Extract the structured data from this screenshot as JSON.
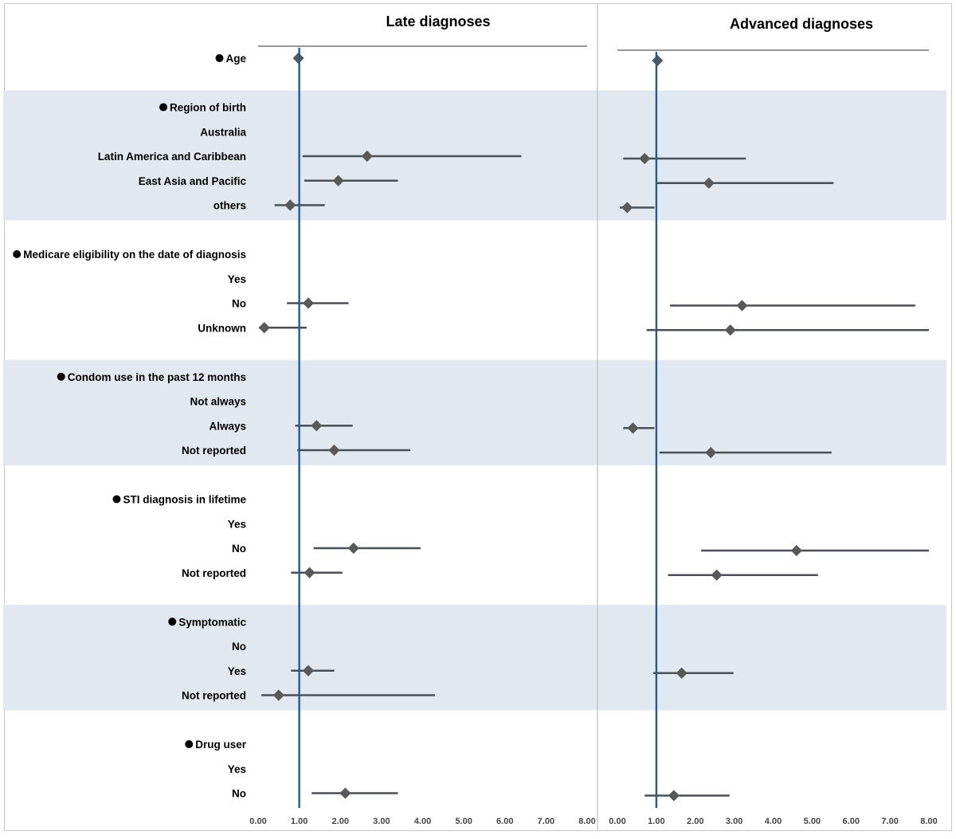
{
  "chart_data": {
    "type": "forest",
    "panels": [
      {
        "id": "late",
        "title": "Late diagnoses",
        "xlim": [
          0,
          8
        ],
        "ticks": [
          "0.00",
          "1.00",
          "2.00",
          "3.00",
          "4.00",
          "5.00",
          "6.00",
          "7.00",
          "8.00"
        ]
      },
      {
        "id": "advanced",
        "title": "Advanced diagnoses",
        "xlim": [
          0,
          8
        ],
        "ticks": [
          "0.00",
          "1.00",
          "2.00",
          "3.00",
          "4.00",
          "5.00",
          "6.00",
          "7.00",
          "8.00"
        ]
      }
    ],
    "reference_value": 1.0,
    "groups": [
      {
        "shaded": false,
        "rows": [
          {
            "label": "Age",
            "header": true,
            "late": {
              "est": 0.98,
              "lo": null,
              "hi": null
            },
            "advanced": {
              "est": 1.03,
              "lo": null,
              "hi": null
            }
          }
        ]
      },
      {
        "shaded": true,
        "rows": [
          {
            "label": "Region of birth",
            "header": true
          },
          {
            "label": "Australia"
          },
          {
            "label": "Latin America and Caribbean",
            "late": {
              "est": 2.65,
              "lo": 1.08,
              "hi": 6.4
            },
            "advanced": {
              "est": 0.7,
              "lo": 0.15,
              "hi": 3.3
            }
          },
          {
            "label": "East Asia and Pacific",
            "late": {
              "est": 1.95,
              "lo": 1.12,
              "hi": 3.4
            },
            "advanced": {
              "est": 2.35,
              "lo": 1.0,
              "hi": 5.55
            }
          },
          {
            "label": "others",
            "late": {
              "est": 0.78,
              "lo": 0.4,
              "hi": 1.62
            },
            "advanced": {
              "est": 0.25,
              "lo": 0.06,
              "hi": 0.95
            }
          }
        ]
      },
      {
        "shaded": false,
        "rows": [
          {
            "label": "Medicare eligibility on the date of diagnosis",
            "header": true
          },
          {
            "label": "Yes"
          },
          {
            "label": "No",
            "late": {
              "est": 1.22,
              "lo": 0.7,
              "hi": 2.2
            },
            "advanced": {
              "est": 3.2,
              "lo": 1.35,
              "hi": 7.65
            }
          },
          {
            "label": "Unknown",
            "late": {
              "est": 0.15,
              "lo": 0.02,
              "hi": 1.18
            },
            "advanced": {
              "est": 2.9,
              "lo": 0.75,
              "hi": 8.0
            }
          }
        ]
      },
      {
        "shaded": true,
        "rows": [
          {
            "label": "Condom use in the past 12 months",
            "header": true
          },
          {
            "label": "Not always"
          },
          {
            "label": "Always",
            "late": {
              "est": 1.42,
              "lo": 0.9,
              "hi": 2.3
            },
            "advanced": {
              "est": 0.4,
              "lo": 0.15,
              "hi": 0.95
            }
          },
          {
            "label": "Not reported",
            "late": {
              "est": 1.85,
              "lo": 0.95,
              "hi": 3.7
            },
            "advanced": {
              "est": 2.4,
              "lo": 1.08,
              "hi": 5.5
            }
          }
        ]
      },
      {
        "shaded": false,
        "rows": [
          {
            "label": "STI diagnosis in lifetime",
            "header": true
          },
          {
            "label": "Yes"
          },
          {
            "label": "No",
            "late": {
              "est": 2.32,
              "lo": 1.35,
              "hi": 3.95
            },
            "advanced": {
              "est": 4.6,
              "lo": 2.15,
              "hi": 8.0
            }
          },
          {
            "label": "Not reported",
            "late": {
              "est": 1.25,
              "lo": 0.8,
              "hi": 2.05
            },
            "advanced": {
              "est": 2.55,
              "lo": 1.3,
              "hi": 5.15
            }
          }
        ]
      },
      {
        "shaded": true,
        "rows": [
          {
            "label": "Symptomatic",
            "header": true
          },
          {
            "label": "No"
          },
          {
            "label": "Yes",
            "late": {
              "est": 1.22,
              "lo": 0.8,
              "hi": 1.85
            },
            "advanced": {
              "est": 1.65,
              "lo": 0.92,
              "hi": 2.98
            }
          },
          {
            "label": "Not reported",
            "late": {
              "est": 0.5,
              "lo": 0.08,
              "hi": 4.3
            },
            "advanced": null
          }
        ]
      },
      {
        "shaded": false,
        "rows": [
          {
            "label": "Drug user",
            "header": true
          },
          {
            "label": "Yes"
          },
          {
            "label": "No",
            "late": {
              "est": 2.12,
              "lo": 1.3,
              "hi": 3.4
            },
            "advanced": {
              "est": 1.45,
              "lo": 0.7,
              "hi": 2.88
            }
          }
        ]
      }
    ]
  }
}
